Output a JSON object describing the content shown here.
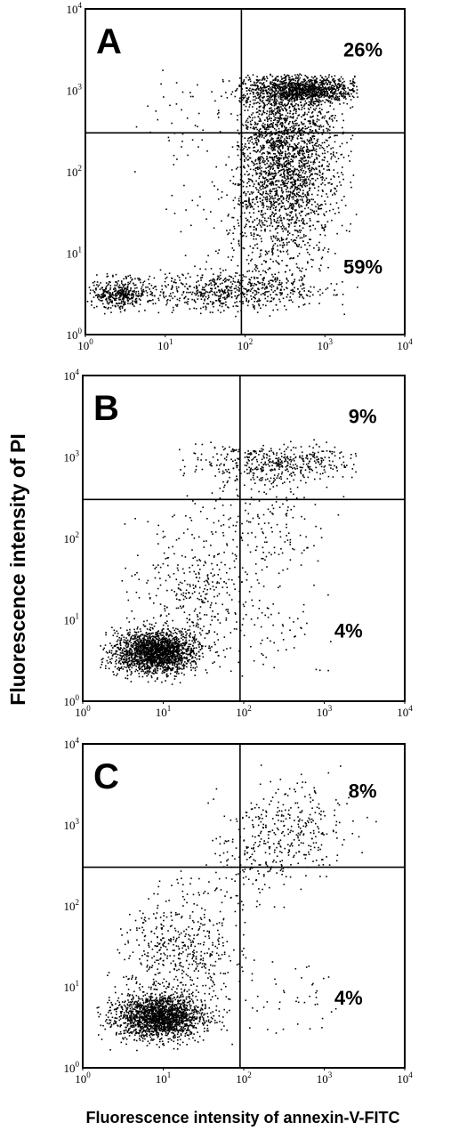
{
  "figure": {
    "ylabel": "Fluorescence intensity of PI",
    "xlabel": "Fluorescence intensity of annexin-V-FITC"
  },
  "chart_data": [
    {
      "type": "scatter",
      "panel": "A",
      "xscale": "log",
      "yscale": "log",
      "xlim": [
        1,
        10000
      ],
      "ylim": [
        1,
        10000
      ],
      "x_ticks": [
        1,
        10,
        100,
        1000,
        10000
      ],
      "y_ticks": [
        1,
        10,
        100,
        1000,
        10000
      ],
      "x_tick_labels": [
        {
          "base": "10",
          "exp": "0"
        },
        {
          "base": "10",
          "exp": "1"
        },
        {
          "base": "10",
          "exp": "2"
        },
        {
          "base": "10",
          "exp": "3"
        },
        {
          "base": "10",
          "exp": "4"
        }
      ],
      "y_tick_labels": [
        {
          "base": "10",
          "exp": "0"
        },
        {
          "base": "10",
          "exp": "1"
        },
        {
          "base": "10",
          "exp": "2"
        },
        {
          "base": "10",
          "exp": "3"
        },
        {
          "base": "10",
          "exp": "4"
        }
      ],
      "gates": {
        "x": 90,
        "y": 300
      },
      "annotations": [
        {
          "text": "26%",
          "x": 3000,
          "y": 3000,
          "quadrant": "upper-right"
        },
        {
          "text": "59%",
          "x": 3000,
          "y": 6.5,
          "quadrant": "lower-right"
        }
      ],
      "clusters": [
        {
          "n": 2400,
          "cx": 320,
          "cy": 180,
          "sx": 0.33,
          "sy": 0.65,
          "xmin": 80,
          "xmax": 2600,
          "ymin": 2,
          "ymax": 1600
        },
        {
          "n": 1000,
          "cx": 600,
          "cy": 1000,
          "sx": 0.4,
          "sy": 0.08,
          "xmin": 20,
          "xmax": 2600,
          "ymin": 500,
          "ymax": 1500
        },
        {
          "n": 380,
          "cx": 2.6,
          "cy": 3.1,
          "sx": 0.18,
          "sy": 0.09,
          "xmin": 1.05,
          "xmax": 12,
          "ymin": 1.6,
          "ymax": 6
        },
        {
          "n": 650,
          "cx": 60,
          "cy": 3.4,
          "sx": 0.6,
          "sy": 0.12,
          "xmin": 1.1,
          "xmax": 2600,
          "ymin": 1.5,
          "ymax": 8
        },
        {
          "n": 220,
          "cx": 150,
          "cy": 20,
          "sx": 0.45,
          "sy": 0.45,
          "xmin": 8,
          "xmax": 2600,
          "ymin": 2,
          "ymax": 900
        },
        {
          "n": 80,
          "cx": 40,
          "cy": 400,
          "sx": 0.6,
          "sy": 0.5,
          "xmin": 3,
          "xmax": 2600,
          "ymin": 5,
          "ymax": 2000
        }
      ]
    },
    {
      "type": "scatter",
      "panel": "B",
      "xscale": "log",
      "yscale": "log",
      "xlim": [
        1,
        10000
      ],
      "ylim": [
        1,
        10000
      ],
      "x_ticks": [
        1,
        10,
        100,
        1000,
        10000
      ],
      "y_ticks": [
        1,
        10,
        100,
        1000,
        10000
      ],
      "x_tick_labels": [
        {
          "base": "10",
          "exp": "0"
        },
        {
          "base": "10",
          "exp": "1"
        },
        {
          "base": "10",
          "exp": "2"
        },
        {
          "base": "10",
          "exp": "3"
        },
        {
          "base": "10",
          "exp": "4"
        }
      ],
      "y_tick_labels": [
        {
          "base": "10",
          "exp": "0"
        },
        {
          "base": "10",
          "exp": "1"
        },
        {
          "base": "10",
          "exp": "2"
        },
        {
          "base": "10",
          "exp": "3"
        },
        {
          "base": "10",
          "exp": "4"
        }
      ],
      "gates": {
        "x": 90,
        "y": 300
      },
      "annotations": [
        {
          "text": "9%",
          "x": 3000,
          "y": 3000,
          "quadrant": "upper-right"
        },
        {
          "text": "4%",
          "x": 2000,
          "y": 7,
          "quadrant": "lower-right"
        }
      ],
      "clusters": [
        {
          "n": 1900,
          "cx": 8,
          "cy": 4,
          "sx": 0.25,
          "sy": 0.13,
          "xmin": 1.5,
          "xmax": 80,
          "ymin": 1.5,
          "ymax": 15
        },
        {
          "n": 380,
          "cx": 25,
          "cy": 25,
          "sx": 0.4,
          "sy": 0.45,
          "xmin": 2,
          "xmax": 400,
          "ymin": 2,
          "ymax": 400
        },
        {
          "n": 450,
          "cx": 250,
          "cy": 850,
          "sx": 0.5,
          "sy": 0.12,
          "xmin": 15,
          "xmax": 2600,
          "ymin": 300,
          "ymax": 1800
        },
        {
          "n": 160,
          "cx": 200,
          "cy": 150,
          "sx": 0.4,
          "sy": 0.35,
          "xmin": 40,
          "xmax": 2000,
          "ymin": 10,
          "ymax": 800
        },
        {
          "n": 60,
          "cx": 200,
          "cy": 6,
          "sx": 0.5,
          "sy": 0.3,
          "xmin": 15,
          "xmax": 1500,
          "ymin": 1.5,
          "ymax": 30
        }
      ]
    },
    {
      "type": "scatter",
      "panel": "C",
      "xscale": "log",
      "yscale": "log",
      "xlim": [
        1,
        10000
      ],
      "ylim": [
        1,
        10000
      ],
      "x_ticks": [
        1,
        10,
        100,
        1000,
        10000
      ],
      "y_ticks": [
        1,
        10,
        100,
        1000,
        10000
      ],
      "x_tick_labels": [
        {
          "base": "10",
          "exp": "0"
        },
        {
          "base": "10",
          "exp": "1"
        },
        {
          "base": "10",
          "exp": "2"
        },
        {
          "base": "10",
          "exp": "3"
        },
        {
          "base": "10",
          "exp": "4"
        }
      ],
      "y_tick_labels": [
        {
          "base": "10",
          "exp": "0"
        },
        {
          "base": "10",
          "exp": "1"
        },
        {
          "base": "10",
          "exp": "2"
        },
        {
          "base": "10",
          "exp": "3"
        },
        {
          "base": "10",
          "exp": "4"
        }
      ],
      "gates": {
        "x": 90,
        "y": 300
      },
      "annotations": [
        {
          "text": "8%",
          "x": 3000,
          "y": 2500,
          "quadrant": "upper-right"
        },
        {
          "text": "4%",
          "x": 2000,
          "y": 7,
          "quadrant": "lower-right"
        }
      ],
      "clusters": [
        {
          "n": 1800,
          "cx": 9,
          "cy": 4.2,
          "sx": 0.28,
          "sy": 0.14,
          "xmin": 1.5,
          "xmax": 80,
          "ymin": 1.5,
          "ymax": 15
        },
        {
          "n": 520,
          "cx": 15,
          "cy": 25,
          "sx": 0.35,
          "sy": 0.4,
          "xmin": 2,
          "xmax": 300,
          "ymin": 3,
          "ymax": 300
        },
        {
          "n": 300,
          "cx": 400,
          "cy": 900,
          "sx": 0.4,
          "sy": 0.3,
          "xmin": 30,
          "xmax": 6000,
          "ymin": 150,
          "ymax": 6000
        },
        {
          "n": 120,
          "cx": 120,
          "cy": 300,
          "sx": 0.35,
          "sy": 0.4,
          "xmin": 40,
          "xmax": 1500,
          "ymin": 20,
          "ymax": 3000
        },
        {
          "n": 50,
          "cx": 300,
          "cy": 8,
          "sx": 0.5,
          "sy": 0.3,
          "xmin": 20,
          "xmax": 1500,
          "ymin": 1.5,
          "ymax": 40
        }
      ]
    }
  ]
}
